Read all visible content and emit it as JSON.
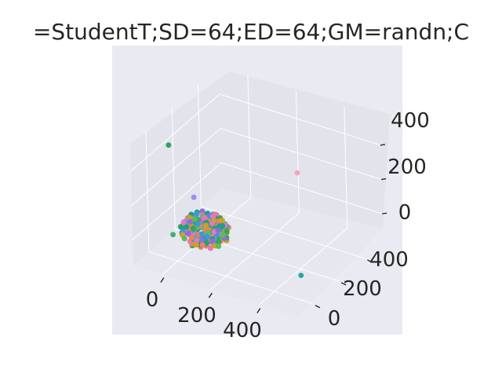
{
  "chart_data": {
    "type": "scatter3d",
    "title": "=StudentT;SD=64;ED=64;GM=randn;C",
    "xlabel": "",
    "ylabel": "",
    "zlabel": "",
    "x_ticks": [
      "0",
      "200",
      "400"
    ],
    "y_ticks": [
      "0",
      "200",
      "400"
    ],
    "z_ticks": [
      "0",
      "200",
      "400"
    ],
    "xlim": [
      -120,
      560
    ],
    "ylim": [
      -120,
      560
    ],
    "zlim": [
      -150,
      560
    ],
    "grid": true,
    "background": "#EAEAF2",
    "cluster": {
      "center": [
        80,
        70,
        20
      ],
      "approx_radius": 35,
      "count": 260,
      "colors": [
        "#e377c2",
        "#1f9e89",
        "#3a9ad9",
        "#39a845",
        "#c9a227",
        "#8d6ee0",
        "#f08060",
        "#62b85c"
      ]
    },
    "outliers": [
      {
        "x": -60,
        "y": 60,
        "z": 460,
        "color": "#2ca25f"
      },
      {
        "x": 40,
        "y": 60,
        "z": 200,
        "color": "#9b8cf0"
      },
      {
        "x": 330,
        "y": 320,
        "z": 300,
        "color": "#f4a6b8"
      },
      {
        "x": 480,
        "y": 60,
        "z": -60,
        "color": "#27a89a"
      },
      {
        "x": -40,
        "y": 40,
        "z": -40,
        "color": "#3cb371"
      }
    ]
  }
}
